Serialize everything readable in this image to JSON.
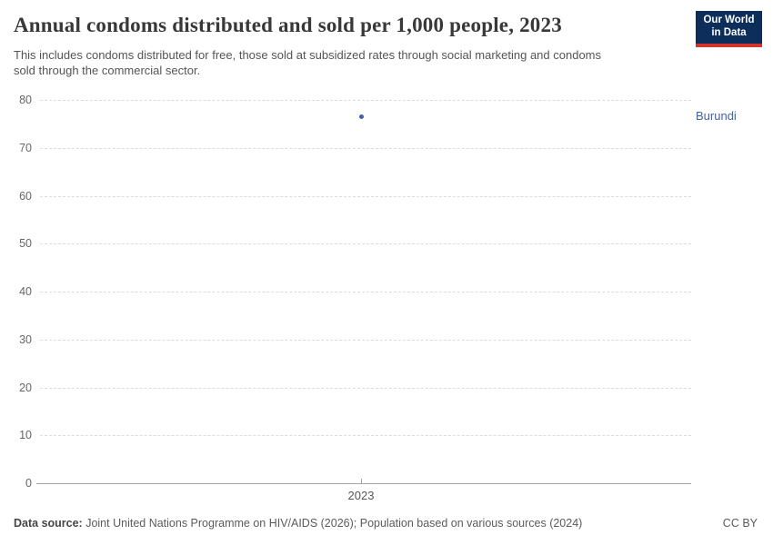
{
  "header": {
    "title": "Annual condoms distributed and sold per 1,000 people, 2023",
    "subtitle_lines": [
      "This includes condoms distributed for free, those sold at subsidized rates through social marketing and condoms",
      "sold through the commercial sector."
    ],
    "logo": {
      "line1": "Our World",
      "line2": "in Data"
    }
  },
  "colors": {
    "accent": "#4262a8",
    "logo_bg": "#0d2e5b",
    "logo_red": "#d0342c",
    "grid": "#dcdcdc",
    "axis": "#a3a3a3",
    "tick_label": "#666666"
  },
  "chart_data": {
    "type": "scatter",
    "title": "Annual condoms distributed and sold per 1,000 people, 2023",
    "series": [
      {
        "name": "Burundi",
        "x": [
          2023
        ],
        "y": [
          76.5
        ],
        "color": "#4262a8"
      }
    ],
    "x_tick_labels": [
      "2023"
    ],
    "y_ticks": [
      0,
      10,
      20,
      30,
      40,
      50,
      60,
      70,
      80
    ],
    "ylim": [
      0,
      80
    ],
    "xlabel": "",
    "ylabel": "",
    "grid": "horizontal-dashed",
    "legend": "entity-label-right-of-plot"
  },
  "footer": {
    "datasource_label": "Data source:",
    "datasource_text": " Joint United Nations Programme on HIV/AIDS (2026); Population based on various sources (2024)",
    "license": "CC BY"
  }
}
